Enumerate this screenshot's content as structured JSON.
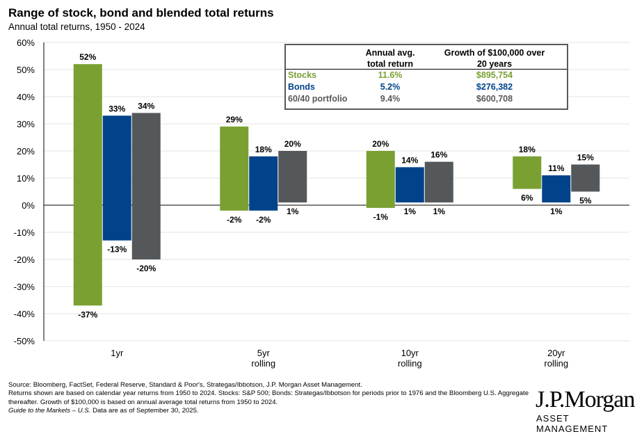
{
  "chart_data": {
    "type": "bar",
    "subtype": "floating-range",
    "title": "Range of stock, bond and blended total returns",
    "subtitle": "Annual total returns, 1950 - 2024",
    "categories": [
      "1yr",
      "5yr rolling",
      "10yr rolling",
      "20yr rolling"
    ],
    "category_lines": [
      [
        "1yr"
      ],
      [
        "5yr",
        "rolling"
      ],
      [
        "10yr",
        "rolling"
      ],
      [
        "20yr",
        "rolling"
      ]
    ],
    "series": [
      {
        "name": "Stocks",
        "color": "#7aa032",
        "max": [
          52,
          29,
          20,
          18
        ],
        "min": [
          -37,
          -2,
          -1,
          6
        ]
      },
      {
        "name": "Bonds",
        "color": "#00438a",
        "max": [
          33,
          18,
          14,
          11
        ],
        "min": [
          -13,
          -2,
          1,
          1
        ]
      },
      {
        "name": "60/40 portfolio",
        "color": "#55585a",
        "max": [
          34,
          20,
          16,
          15
        ],
        "min": [
          -20,
          1,
          1,
          5
        ]
      }
    ],
    "ylim": [
      -50,
      60
    ],
    "yticks": [
      "60%",
      "50%",
      "40%",
      "30%",
      "20%",
      "10%",
      "0%",
      "-10%",
      "-20%",
      "-30%",
      "-40%",
      "-50%"
    ],
    "ytick_values": [
      60,
      50,
      40,
      30,
      20,
      10,
      0,
      -10,
      -20,
      -30,
      -40,
      -50
    ],
    "grid": true
  },
  "table": {
    "headers": [
      "Annual avg.\ntotal return",
      "Growth of $100,000 over\n20 years"
    ],
    "header1_line1": "Annual avg.",
    "header1_line2": "total return",
    "header2_line1": "Growth of $100,000 over",
    "header2_line2": "20 years",
    "rows": [
      {
        "label": "Stocks",
        "avg": "11.6%",
        "growth": "$895,754",
        "color": "#7aa032"
      },
      {
        "label": "Bonds",
        "avg": "5.2%",
        "growth": "$276,382",
        "color": "#00438a"
      },
      {
        "label": "60/40 portfolio",
        "avg": "9.4%",
        "growth": "$600,708",
        "color": "#595959"
      }
    ]
  },
  "footnotes": [
    "Source: Bloomberg, FactSet, Federal Reserve, Standard & Poor's, Strategas/Ibbotson, J.P. Morgan Asset Management.",
    "Returns shown are based on calendar year returns from 1950 to 2024. Stocks: S&P 500; Bonds: Strategas/Ibbotson for periods prior to 1976 and the Bloomberg U.S. Aggregate thereafter. Growth of $100,000 is based on annual average total returns from 1950 to 2024.",
    "Data are as of September 30, 2025."
  ],
  "footnote_italic": "Guide to the Markets – U.S.",
  "logo": {
    "name": "J.P.Morgan",
    "sub": "ASSET MANAGEMENT"
  }
}
